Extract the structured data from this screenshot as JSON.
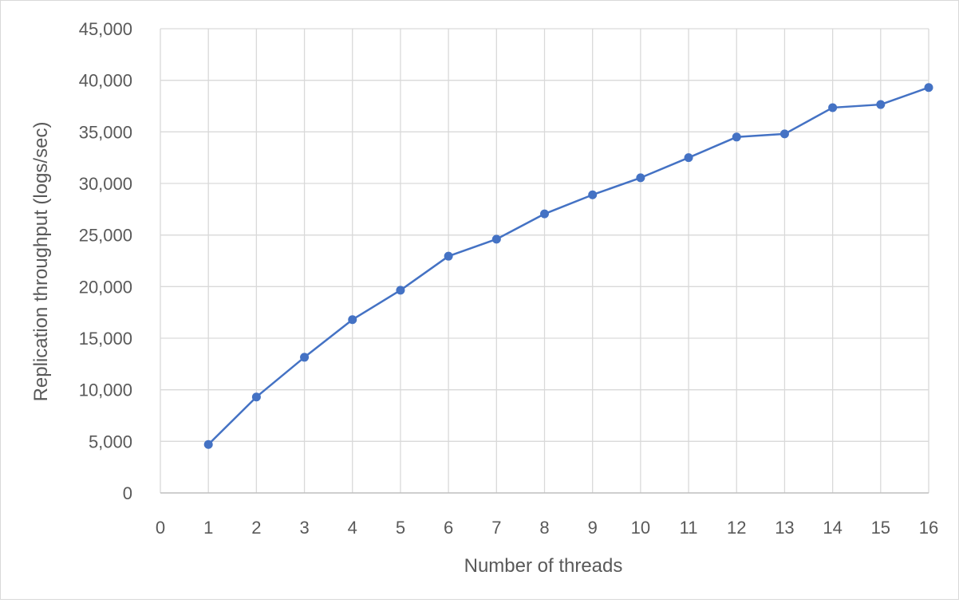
{
  "chart_data": {
    "type": "line",
    "title": "",
    "xlabel": "Number of threads",
    "ylabel": "Replication throughput  (logs/sec)",
    "xlim": [
      0,
      16
    ],
    "ylim": [
      0,
      45000
    ],
    "x_ticks": [
      0,
      1,
      2,
      3,
      4,
      5,
      6,
      7,
      8,
      9,
      10,
      11,
      12,
      13,
      14,
      15,
      16
    ],
    "y_ticks": [
      0,
      5000,
      10000,
      15000,
      20000,
      25000,
      30000,
      35000,
      40000,
      45000
    ],
    "y_tick_labels": [
      "0",
      "5,000",
      "10,000",
      "15,000",
      "20,000",
      "25,000",
      "30,000",
      "35,000",
      "40,000",
      "45,000"
    ],
    "grid": true,
    "legend": "none",
    "series": [
      {
        "color": "#4472C4",
        "marker": "circle",
        "x": [
          1,
          2,
          3,
          4,
          5,
          6,
          7,
          8,
          9,
          10,
          11,
          12,
          13,
          14,
          15,
          16
        ],
        "y": [
          4700,
          9300,
          13150,
          16800,
          19650,
          22950,
          24600,
          27050,
          28900,
          30550,
          32500,
          34500,
          34800,
          37350,
          37650,
          39300
        ]
      }
    ]
  }
}
